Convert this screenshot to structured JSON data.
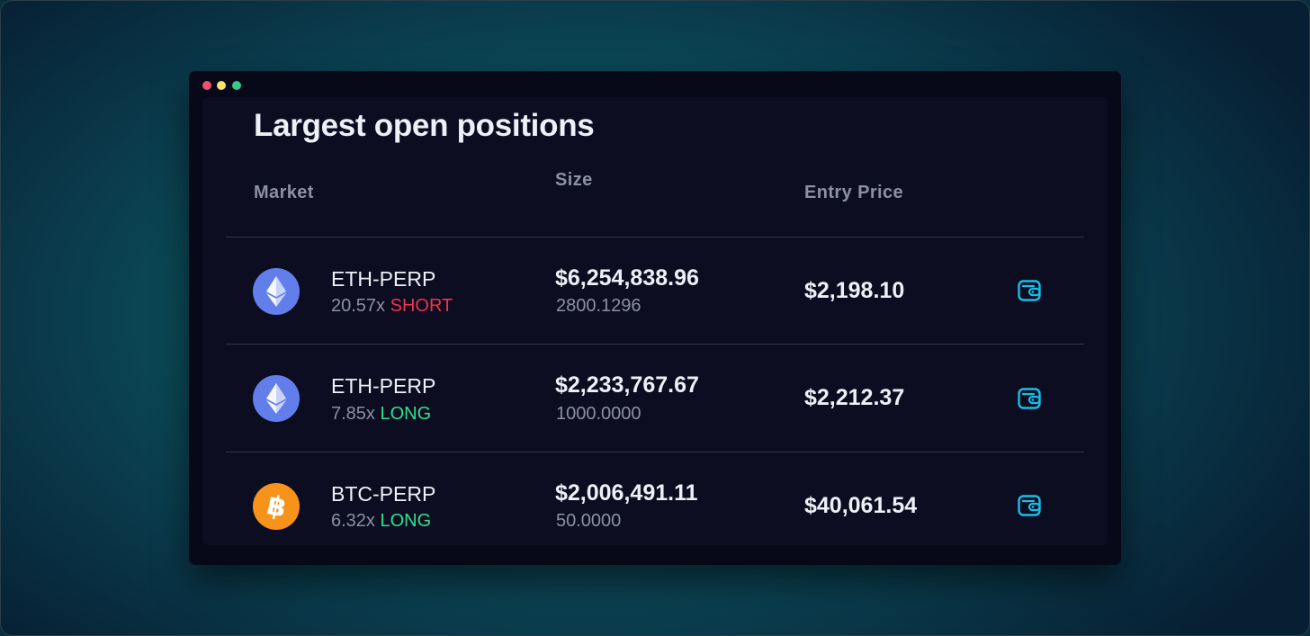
{
  "window": {
    "title": "Largest open positions"
  },
  "table": {
    "headers": {
      "market": "Market",
      "size": "Size",
      "entry_price": "Entry Price"
    },
    "rows": [
      {
        "coin_icon": "ethereum-icon",
        "market": "ETH-PERP",
        "leverage": "20.57x",
        "side": "SHORT",
        "size_usd": "$6,254,838.96",
        "size_qty": "2800.1296",
        "entry_price": "$2,198.10"
      },
      {
        "coin_icon": "ethereum-icon",
        "market": "ETH-PERP",
        "leverage": "7.85x",
        "side": "LONG",
        "size_usd": "$2,233,767.67",
        "size_qty": "1000.0000",
        "entry_price": "$2,212.37"
      },
      {
        "coin_icon": "bitcoin-icon",
        "market": "BTC-PERP",
        "leverage": "6.32x",
        "side": "LONG",
        "size_usd": "$2,006,491.11",
        "size_qty": "50.0000",
        "entry_price": "$40,061.54"
      }
    ]
  },
  "colors": {
    "short": "#f0334f",
    "long": "#2fe08f",
    "accent_wallet": "#18bfe6",
    "eth_coin": "#627eea",
    "btc_coin": "#f7931a"
  },
  "icons": {
    "row_action": "wallet-icon"
  }
}
